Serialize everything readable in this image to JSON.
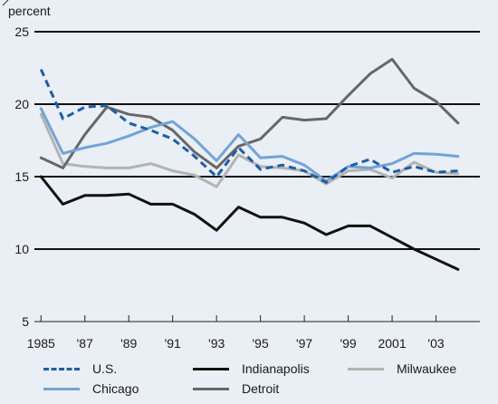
{
  "chart_data": {
    "type": "line",
    "ylabel": "percent",
    "ylim": [
      5,
      25
    ],
    "yticks": [
      5,
      10,
      15,
      20,
      25
    ],
    "xlim": [
      1984.7,
      2005
    ],
    "xticks": [
      {
        "value": 1985,
        "label": "1985"
      },
      {
        "value": 1987,
        "label": "'87"
      },
      {
        "value": 1989,
        "label": "'89"
      },
      {
        "value": 1991,
        "label": "'91"
      },
      {
        "value": 1993,
        "label": "'93"
      },
      {
        "value": 1995,
        "label": "'95"
      },
      {
        "value": 1997,
        "label": "'97"
      },
      {
        "value": 1999,
        "label": "'99"
      },
      {
        "value": 2001,
        "label": "2001"
      },
      {
        "value": 2003,
        "label": "'03"
      }
    ],
    "grid": "horizontal",
    "legend_position": "bottom",
    "x": [
      1985,
      1986,
      1987,
      1988,
      1989,
      1990,
      1991,
      1992,
      1993,
      1994,
      1995,
      1996,
      1997,
      1998,
      1999,
      2000,
      2001,
      2002,
      2003,
      2004
    ],
    "series": [
      {
        "name": "U.S.",
        "color": "#1f5da6",
        "style": "dashed",
        "values": [
          22.4,
          19.0,
          19.8,
          19.9,
          18.7,
          18.2,
          17.6,
          16.4,
          15.0,
          17.0,
          15.5,
          15.8,
          15.4,
          14.6,
          15.7,
          16.2,
          15.3,
          15.7,
          15.3,
          15.4
        ]
      },
      {
        "name": "Chicago",
        "color": "#74a3d6",
        "style": "solid",
        "values": [
          19.7,
          16.6,
          17.0,
          17.3,
          17.8,
          18.4,
          18.8,
          17.6,
          16.1,
          17.9,
          16.3,
          16.4,
          15.8,
          14.7,
          15.7,
          15.6,
          15.9,
          16.6,
          16.55,
          16.4
        ]
      },
      {
        "name": "Indianapolis",
        "color": "#111111",
        "style": "solid",
        "values": [
          15.0,
          13.1,
          13.7,
          13.7,
          13.8,
          13.1,
          13.1,
          12.4,
          11.3,
          12.9,
          12.2,
          12.2,
          11.8,
          11.0,
          11.6,
          11.6,
          10.8,
          10.0,
          9.3,
          8.6
        ]
      },
      {
        "name": "Detroit",
        "color": "#676767",
        "style": "solid",
        "values": [
          16.3,
          15.6,
          17.9,
          19.8,
          19.3,
          19.1,
          18.2,
          16.7,
          15.6,
          17.1,
          17.6,
          19.1,
          18.9,
          19.0,
          20.6,
          22.1,
          23.1,
          21.1,
          20.2,
          18.7
        ]
      },
      {
        "name": "Milwaukee",
        "color": "#b3b3b3",
        "style": "solid",
        "values": [
          19.3,
          15.9,
          15.7,
          15.6,
          15.6,
          15.9,
          15.4,
          15.1,
          14.3,
          16.5,
          15.7,
          15.6,
          15.4,
          14.5,
          15.4,
          15.5,
          14.9,
          16.0,
          15.3,
          15.2
        ]
      }
    ]
  }
}
